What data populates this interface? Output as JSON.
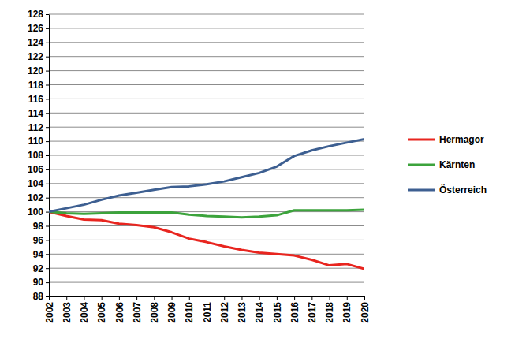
{
  "chart_data": {
    "type": "line",
    "x": [
      2002,
      2003,
      2004,
      2005,
      2006,
      2007,
      2008,
      2009,
      2010,
      2011,
      2012,
      2013,
      2014,
      2015,
      2016,
      2017,
      2018,
      2019,
      2020
    ],
    "series": [
      {
        "name": "Hermagor",
        "color": "#e8251f",
        "values": [
          100,
          99.4,
          98.9,
          98.8,
          98.3,
          98.1,
          97.8,
          97.1,
          96.2,
          95.7,
          95.1,
          94.6,
          94.2,
          94.0,
          93.8,
          93.2,
          92.4,
          92.6,
          91.9
        ]
      },
      {
        "name": "Kärnten",
        "color": "#3ca33c",
        "values": [
          100,
          99.8,
          99.7,
          99.8,
          99.9,
          99.9,
          99.9,
          99.9,
          99.6,
          99.4,
          99.3,
          99.2,
          99.3,
          99.5,
          100.2,
          100.2,
          100.2,
          100.2,
          100.3
        ]
      },
      {
        "name": "Österreich",
        "color": "#3d5f91",
        "values": [
          100,
          100.5,
          101,
          101.7,
          102.3,
          102.7,
          103.1,
          103.5,
          103.6,
          103.9,
          104.3,
          104.9,
          105.5,
          106.4,
          107.9,
          108.7,
          109.3,
          109.8,
          110.3
        ]
      }
    ],
    "xlim": [
      2002,
      2020
    ],
    "xticks": [
      2002,
      2003,
      2004,
      2005,
      2006,
      2007,
      2008,
      2009,
      2010,
      2011,
      2012,
      2013,
      2014,
      2015,
      2016,
      2017,
      2018,
      2019,
      2020
    ],
    "ylim": [
      88,
      128
    ],
    "yticks": [
      88,
      90,
      92,
      94,
      96,
      98,
      100,
      102,
      104,
      106,
      108,
      110,
      112,
      114,
      116,
      118,
      120,
      122,
      124,
      126,
      128
    ],
    "grid": true,
    "legend": "right"
  }
}
